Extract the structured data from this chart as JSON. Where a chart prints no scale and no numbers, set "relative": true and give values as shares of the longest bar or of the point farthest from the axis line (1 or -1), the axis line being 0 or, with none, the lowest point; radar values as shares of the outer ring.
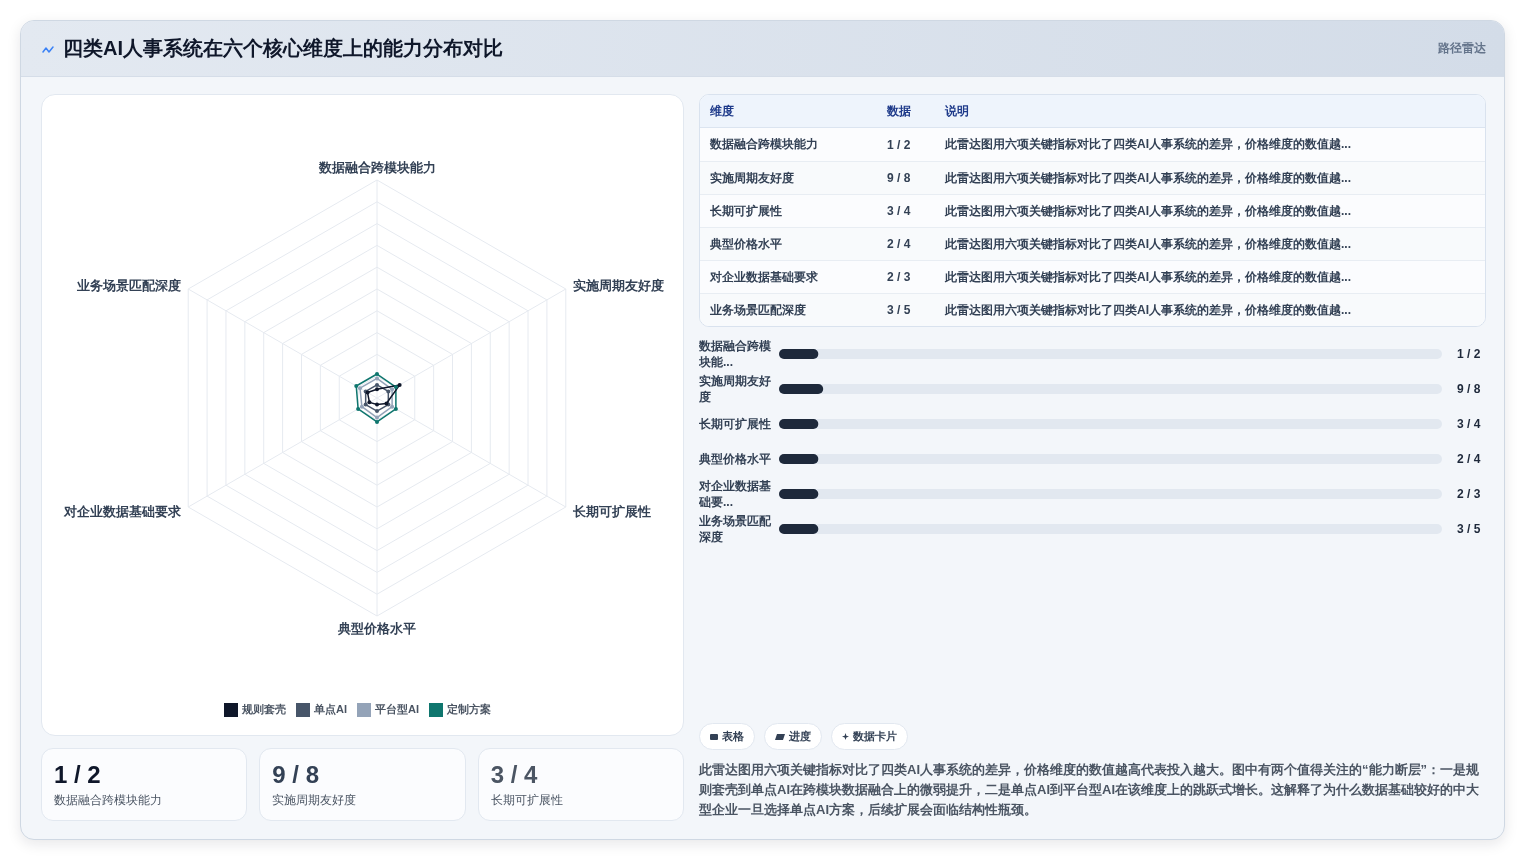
{
  "chart_data": [
    {
      "type": "radar",
      "title": "四类AI人事系统在六个核心维度上的能力分布对比",
      "categories": [
        "数据融合跨模块能力",
        "实施周期友好度",
        "长期可扩展性",
        "典型价格水平",
        "对企业数据基础要求",
        "业务场景匹配深度"
      ],
      "series": [
        {
          "name": "规则套壳",
          "color": "#0f172a",
          "values": [
            0.04,
            0.12,
            0.05,
            0.03,
            0.04,
            0.05
          ]
        },
        {
          "name": "单点AI",
          "color": "#475569",
          "values": [
            0.06,
            0.06,
            0.06,
            0.06,
            0.06,
            0.06
          ]
        },
        {
          "name": "平台型AI",
          "color": "#94a3b8",
          "values": [
            0.09,
            0.08,
            0.08,
            0.09,
            0.08,
            0.09
          ]
        },
        {
          "name": "定制方案",
          "color": "#0f766e",
          "values": [
            0.11,
            0.1,
            0.1,
            0.11,
            0.1,
            0.11
          ]
        }
      ],
      "relative": true,
      "grid": true,
      "legend": "bottom",
      "marker": "circle"
    },
    {
      "type": "other",
      "title": "路径雷达",
      "categories": [
        "维度",
        "数据",
        "说明"
      ],
      "annotations": [
        "数据融合跨模块能力",
        "1 / 2",
        "此雷达图用六项关键指标对比了四类AI人事系统的差异，价格维度的数值越...",
        "实施周期友好度",
        "9 / 8",
        "此雷达图用六项关键指标对比了四类AI人事系统的差异，价格维度的数值越...",
        "长期可扩展性",
        "3 / 4",
        "此雷达图用六项关键指标对比了四类AI人事系统的差异，价格维度的数值越...",
        "典型价格水平",
        "2 / 4",
        "此雷达图用六项关键指标对比了四类AI人事系统的差异，价格维度的数值越...",
        "对企业数据基础要求",
        "2 / 3",
        "此雷达图用六项关键指标对比了四类AI人事系统的差异，价格维度的数值越...",
        "业务场景匹配深度",
        "3 / 5",
        "此雷达图用六项关键指标对比了四类AI人事系统的差异，价格维度的数值越..."
      ]
    },
    {
      "type": "bar",
      "orientation": "horizontal",
      "categories": [
        "数据融合跨模块能...",
        "实施周期友好度",
        "长期可扩展性",
        "典型价格水平",
        "对企业数据基础要...",
        "业务场景匹配深度"
      ],
      "values": [
        0.89,
        1,
        0.89,
        0.89,
        0.89,
        0.89
      ],
      "color": "#1e293b",
      "relative": true,
      "annotations": [
        "1 / 2",
        "9 / 8",
        "3 / 4",
        "2 / 4",
        "2 / 3",
        "3 / 5"
      ]
    },
    {
      "type": "other",
      "categories": [
        "数据融合跨模块能力",
        "实施周期友好度",
        "长期可扩展性"
      ],
      "annotations": [
        "1 / 2",
        "9 / 8",
        "3 / 4"
      ]
    },
    {
      "type": "other",
      "categories": [
        "表格",
        "进度",
        "数据卡片"
      ],
      "annotations": [
        "此雷达图用六项关键指标对比了四类AI人事系统的差异，价格维度的数值越高代表投入越大。图中有两个值得关注的“能力断层”：一是规则套壳到单点AI在跨模块数据融合上的微弱提升，二是单点AI到平台型AI在该维度上的跳跃式增长。这解释了为什么数据基础较好的中大型企业一旦选择单点AI方案，后续扩展会面临结构性瓶颈。"
      ]
    }
  ]
}
